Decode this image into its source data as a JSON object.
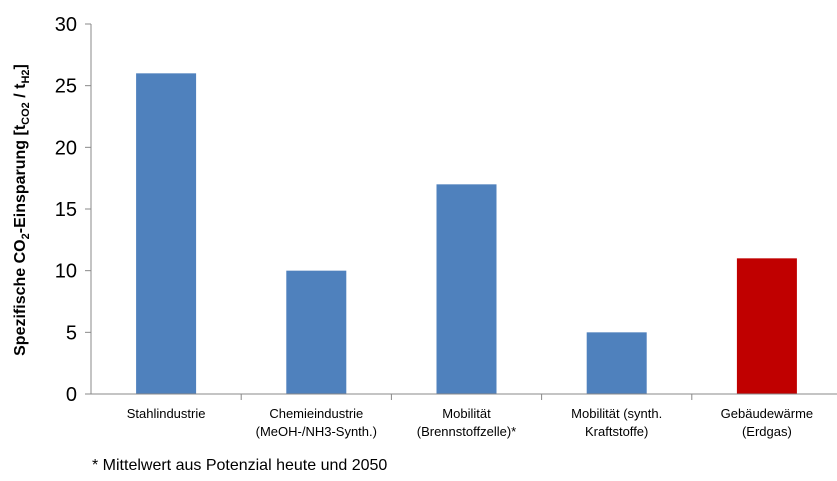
{
  "chart_data": {
    "type": "bar",
    "categories": [
      [
        "Stahlindustrie"
      ],
      [
        "Chemieindustrie",
        "(MeOH-/NH3-Synth.)"
      ],
      [
        "Mobilität",
        "(Brennstoffzelle)*"
      ],
      [
        "Mobilität (synth.",
        "Kraftstoffe)"
      ],
      [
        "Gebäudewärme",
        "(Erdgas)"
      ]
    ],
    "values": [
      26,
      10,
      17,
      5,
      11
    ],
    "colors": [
      "#4f81bd",
      "#4f81bd",
      "#4f81bd",
      "#4f81bd",
      "#c00000"
    ],
    "ylabel": {
      "prefix": "Spezifische CO",
      "sub1": "2",
      "mid": "-Einsparung [t",
      "sub2": "CO2",
      "sep": " / t",
      "sub3": "H2",
      "suffix": "]"
    },
    "ylim": [
      0,
      30
    ],
    "yticks": [
      0,
      5,
      10,
      15,
      20,
      25,
      30
    ],
    "grid": false
  },
  "footnote": "* Mittelwert aus Potenzial heute und 2050"
}
